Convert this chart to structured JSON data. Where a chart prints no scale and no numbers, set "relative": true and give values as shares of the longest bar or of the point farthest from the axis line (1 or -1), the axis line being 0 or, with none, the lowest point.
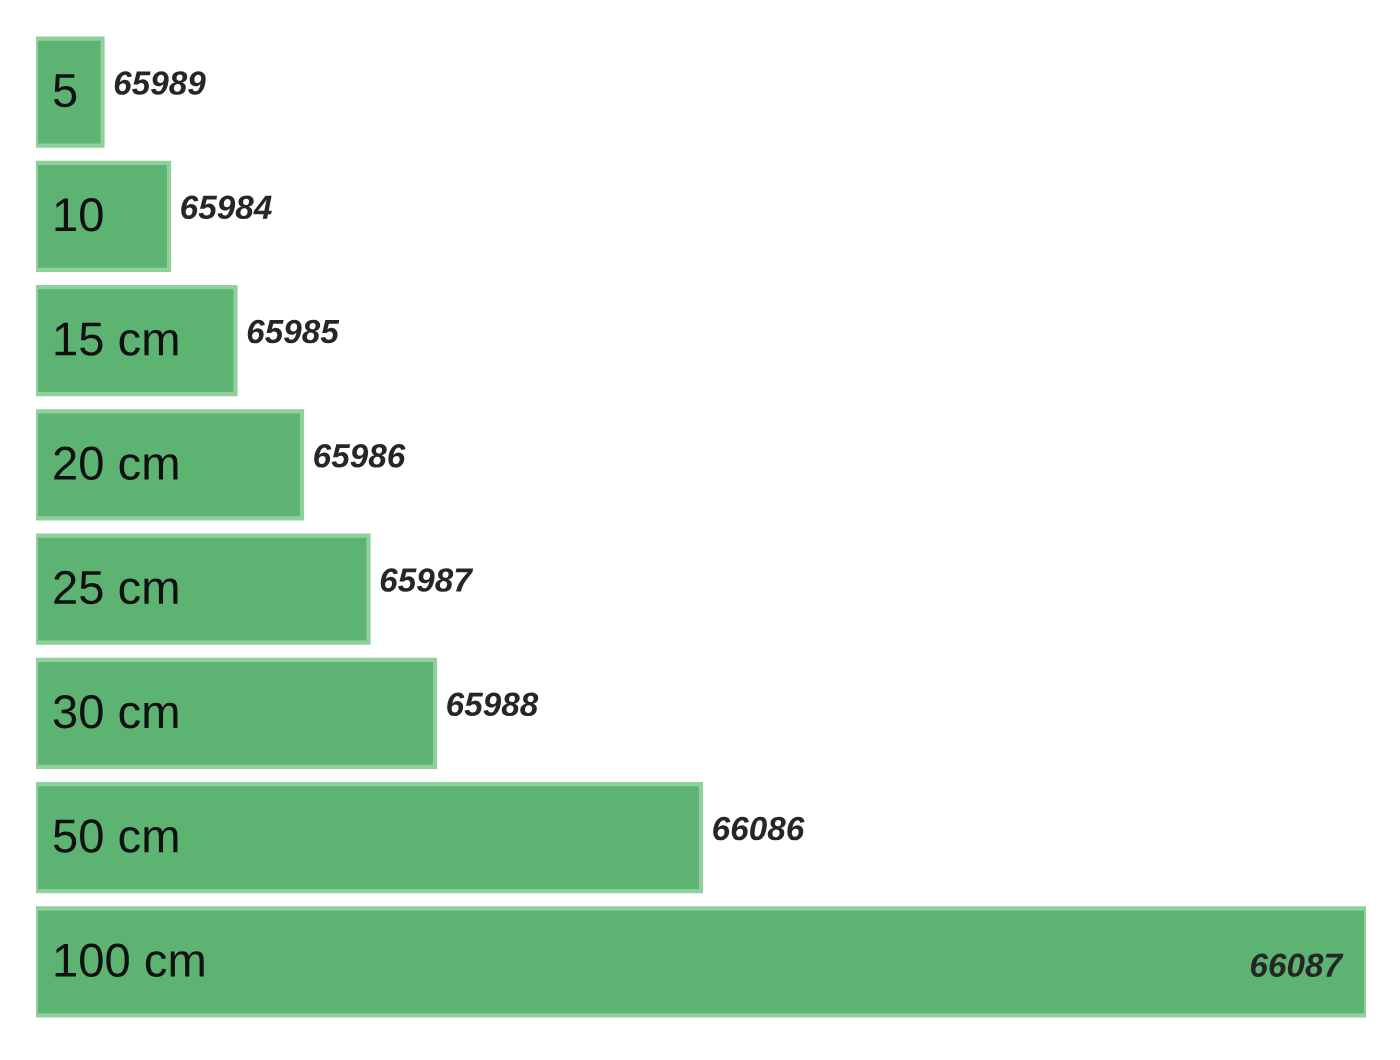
{
  "chart_data": {
    "type": "bar",
    "orientation": "horizontal",
    "relative": true,
    "categories": [
      "5",
      "10",
      "15 cm",
      "20 cm",
      "25 cm",
      "30 cm",
      "50 cm",
      "100 cm"
    ],
    "values": [
      0.05,
      0.1,
      0.15,
      0.2,
      0.25,
      0.3,
      0.5,
      1
    ],
    "annotations": [
      {
        "text": "65989",
        "x": 0.05
      },
      {
        "text": "65984",
        "x": 0.1
      },
      {
        "text": "65985",
        "x": 0.15
      },
      {
        "text": "65986",
        "x": 0.2
      },
      {
        "text": "65987",
        "x": 0.25
      },
      {
        "text": "65988",
        "x": 0.3
      },
      {
        "text": "66086",
        "x": 0.5
      },
      {
        "text": "66087",
        "x": 1
      }
    ],
    "color": "#5db371"
  }
}
